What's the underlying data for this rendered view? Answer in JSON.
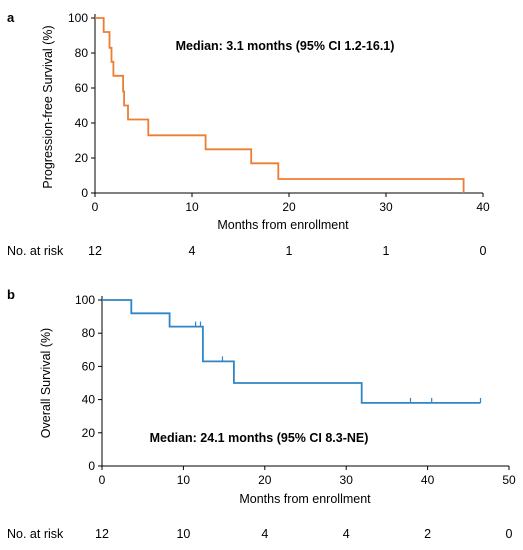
{
  "chart_data": [
    {
      "type": "line",
      "panel": "a",
      "annotation": "Median: 3.1 months (95% CI 1.2-16.1)",
      "xlabel": "Months from enrollment",
      "ylabel": "Progression-free Survival (%)",
      "xlim": [
        0,
        40
      ],
      "ylim": [
        0,
        100
      ],
      "xticks": [
        0,
        10,
        20,
        30,
        40
      ],
      "yticks": [
        0,
        20,
        40,
        60,
        80,
        100
      ],
      "color": "#ed7d31",
      "step_points": [
        [
          0,
          100
        ],
        [
          0.9,
          100
        ],
        [
          0.9,
          92
        ],
        [
          1.5,
          92
        ],
        [
          1.5,
          83
        ],
        [
          1.7,
          83
        ],
        [
          1.7,
          75
        ],
        [
          1.9,
          75
        ],
        [
          1.9,
          67
        ],
        [
          2.9,
          67
        ],
        [
          2.9,
          58
        ],
        [
          3.0,
          58
        ],
        [
          3.0,
          50
        ],
        [
          3.4,
          50
        ],
        [
          3.4,
          42
        ],
        [
          5.5,
          42
        ],
        [
          5.5,
          33
        ],
        [
          11.4,
          33
        ],
        [
          11.4,
          25
        ],
        [
          16.1,
          25
        ],
        [
          16.1,
          17
        ],
        [
          18.9,
          17
        ],
        [
          18.9,
          8
        ],
        [
          38.0,
          8
        ],
        [
          38.0,
          0
        ]
      ],
      "censor_points": [],
      "at_risk": {
        "label": "No. at risk",
        "times": [
          0,
          10,
          20,
          30,
          40
        ],
        "counts": [
          "12",
          "4",
          "1",
          "1",
          "0"
        ]
      }
    },
    {
      "type": "line",
      "panel": "b",
      "annotation": "Median: 24.1 months (95% CI 8.3-NE)",
      "xlabel": "Months from enrollment",
      "ylabel": "Overall Survival (%)",
      "xlim": [
        0,
        50
      ],
      "ylim": [
        0,
        100
      ],
      "xticks": [
        0,
        10,
        20,
        30,
        40,
        50
      ],
      "yticks": [
        0,
        20,
        40,
        60,
        80,
        100
      ],
      "color": "#2e86c8",
      "step_points": [
        [
          0,
          100
        ],
        [
          3.6,
          100
        ],
        [
          3.6,
          92
        ],
        [
          8.3,
          92
        ],
        [
          8.3,
          84
        ],
        [
          12.4,
          84
        ],
        [
          12.4,
          63
        ],
        [
          16.2,
          63
        ],
        [
          16.2,
          50
        ],
        [
          31.9,
          50
        ],
        [
          31.9,
          38
        ],
        [
          46.5,
          38
        ]
      ],
      "censor_points": [
        [
          11.5,
          84
        ],
        [
          12.1,
          84
        ],
        [
          14.8,
          63
        ],
        [
          37.9,
          38
        ],
        [
          40.5,
          38
        ],
        [
          46.5,
          38
        ]
      ],
      "at_risk": {
        "label": "No. at risk",
        "times": [
          0,
          10,
          20,
          30,
          40,
          50
        ],
        "counts": [
          "12",
          "10",
          "4",
          "4",
          "2",
          "0"
        ]
      }
    }
  ]
}
